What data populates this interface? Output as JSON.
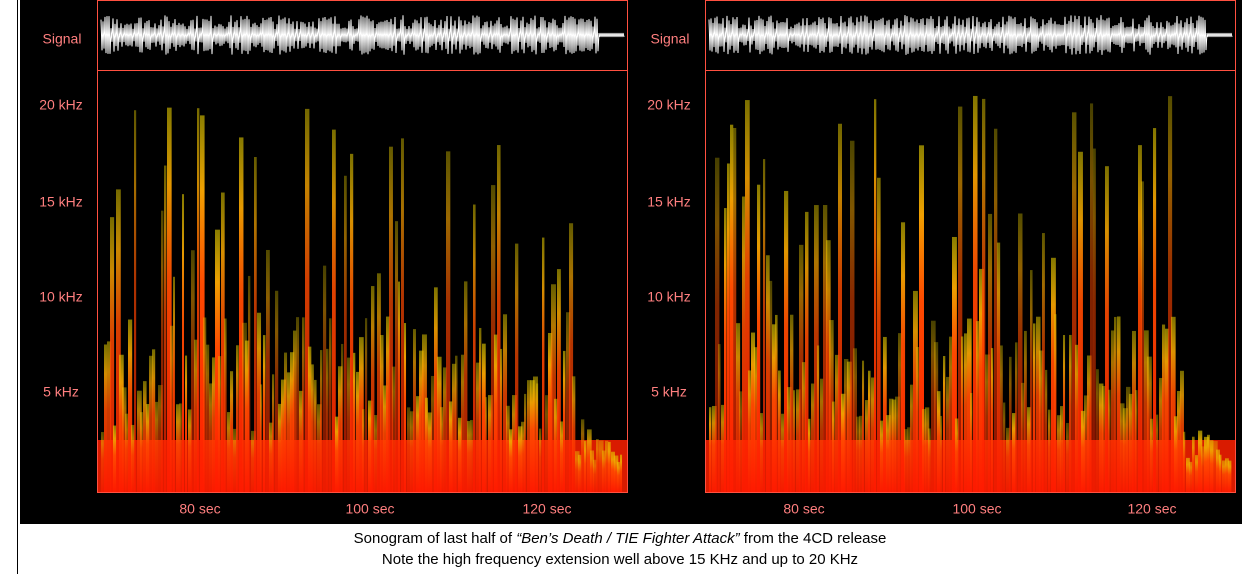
{
  "panels": [
    {
      "signal_label": "Signal",
      "y_labels": [
        "20 kHz",
        "15 kHz",
        "10 kHz",
        "5 kHz"
      ],
      "x_labels": [
        "80  sec",
        "100 sec",
        "120 sec"
      ]
    },
    {
      "signal_label": "Signal",
      "y_labels": [
        "20 kHz",
        "15 kHz",
        "10 kHz",
        "5 kHz"
      ],
      "x_labels": [
        "80  sec",
        "100 sec",
        "120 sec"
      ]
    }
  ],
  "caption": {
    "line1_before": "Sonogram of last half of ",
    "line1_title": "“Ben’s Death / TIE Fighter Attack”",
    "line1_after": " from the 4CD release",
    "line2": "Note the high frequency extension well above 15 KHz and up to 20 KHz"
  }
}
